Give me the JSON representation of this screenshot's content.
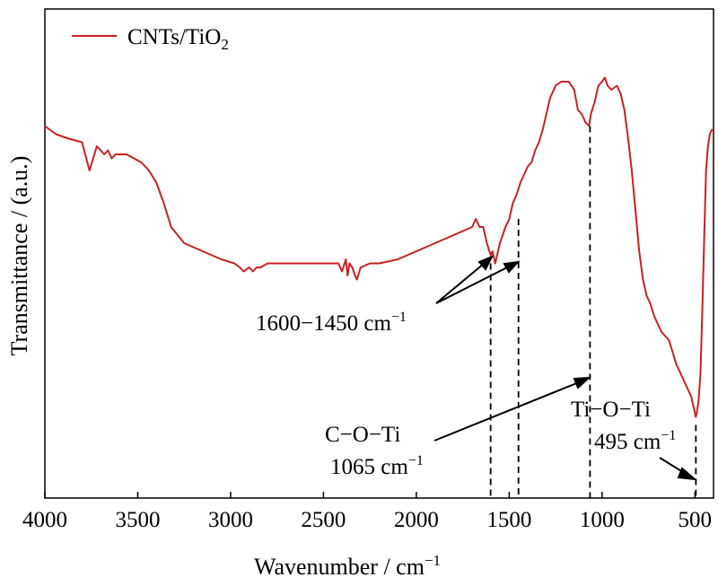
{
  "chart_data": {
    "type": "line",
    "title": "",
    "xlabel": "Wavenumber / cm",
    "xlabel_sup": "−1",
    "ylabel": "Transmittance / (a.u.)",
    "xlim": [
      4000,
      400
    ],
    "x_reversed": true,
    "ylim": [
      0,
      1
    ],
    "y_ticks_shown": false,
    "grid": false,
    "legend_position": "top-left",
    "xticks": [
      4000,
      3500,
      3000,
      2500,
      2000,
      1500,
      1000,
      500
    ],
    "xtick_labels": [
      "4000",
      "3500",
      "3000",
      "2500",
      "2000",
      "1500",
      "1000",
      "500"
    ],
    "series": [
      {
        "name": "CNTs/TiO",
        "name_sub": "2",
        "color": "#cc1f1f",
        "x": [
          4000,
          3940,
          3880,
          3800,
          3760,
          3740,
          3720,
          3680,
          3660,
          3640,
          3620,
          3580,
          3560,
          3520,
          3480,
          3440,
          3400,
          3360,
          3320,
          3250,
          3150,
          3050,
          2980,
          2950,
          2930,
          2900,
          2880,
          2860,
          2840,
          2800,
          2700,
          2600,
          2500,
          2420,
          2400,
          2380,
          2370,
          2360,
          2345,
          2330,
          2320,
          2300,
          2250,
          2200,
          2100,
          2000,
          1900,
          1800,
          1700,
          1680,
          1660,
          1640,
          1620,
          1600,
          1590,
          1575,
          1560,
          1550,
          1520,
          1500,
          1480,
          1460,
          1440,
          1420,
          1400,
          1380,
          1360,
          1340,
          1320,
          1300,
          1280,
          1250,
          1220,
          1180,
          1150,
          1130,
          1110,
          1090,
          1070,
          1060,
          1040,
          1020,
          1000,
          985,
          970,
          950,
          920,
          900,
          880,
          860,
          840,
          820,
          800,
          780,
          760,
          740,
          720,
          700,
          680,
          660,
          640,
          620,
          600,
          580,
          560,
          540,
          520,
          510,
          500,
          495,
          490,
          480,
          470,
          460,
          450,
          440,
          430,
          420,
          410,
          400
        ],
        "y": [
          0.81,
          0.79,
          0.78,
          0.77,
          0.7,
          0.73,
          0.76,
          0.74,
          0.75,
          0.73,
          0.74,
          0.74,
          0.74,
          0.73,
          0.72,
          0.7,
          0.67,
          0.62,
          0.56,
          0.52,
          0.5,
          0.48,
          0.47,
          0.46,
          0.45,
          0.46,
          0.45,
          0.46,
          0.46,
          0.47,
          0.47,
          0.47,
          0.47,
          0.47,
          0.45,
          0.48,
          0.44,
          0.47,
          0.46,
          0.44,
          0.43,
          0.46,
          0.47,
          0.47,
          0.48,
          0.5,
          0.52,
          0.54,
          0.56,
          0.58,
          0.56,
          0.56,
          0.52,
          0.49,
          0.5,
          0.47,
          0.5,
          0.52,
          0.56,
          0.58,
          0.62,
          0.64,
          0.67,
          0.69,
          0.71,
          0.72,
          0.75,
          0.77,
          0.8,
          0.84,
          0.88,
          0.91,
          0.92,
          0.92,
          0.9,
          0.85,
          0.84,
          0.82,
          0.81,
          0.84,
          0.87,
          0.91,
          0.92,
          0.93,
          0.91,
          0.9,
          0.91,
          0.89,
          0.85,
          0.78,
          0.7,
          0.6,
          0.5,
          0.43,
          0.39,
          0.37,
          0.34,
          0.32,
          0.3,
          0.29,
          0.28,
          0.25,
          0.22,
          0.2,
          0.18,
          0.16,
          0.14,
          0.12,
          0.1,
          0.09,
          0.1,
          0.13,
          0.2,
          0.36,
          0.54,
          0.7,
          0.76,
          0.79,
          0.8,
          0.8
        ]
      }
    ],
    "markers": [
      {
        "x": 1600,
        "y_top": 0.47
      },
      {
        "x": 1450,
        "y_top": 0.58
      },
      {
        "x": 1065,
        "y_top": 0.81
      },
      {
        "x": 495,
        "y_top": 0.07
      }
    ],
    "annotations": [
      {
        "text": "1600−1450 cm",
        "sup": "−1"
      },
      {
        "text": "C−O−Ti",
        "sup": ""
      },
      {
        "text": "1065 cm",
        "sup": "−1"
      },
      {
        "text": "Ti−O−Ti",
        "sup": ""
      },
      {
        "text": "495 cm",
        "sup": "−1"
      }
    ]
  }
}
